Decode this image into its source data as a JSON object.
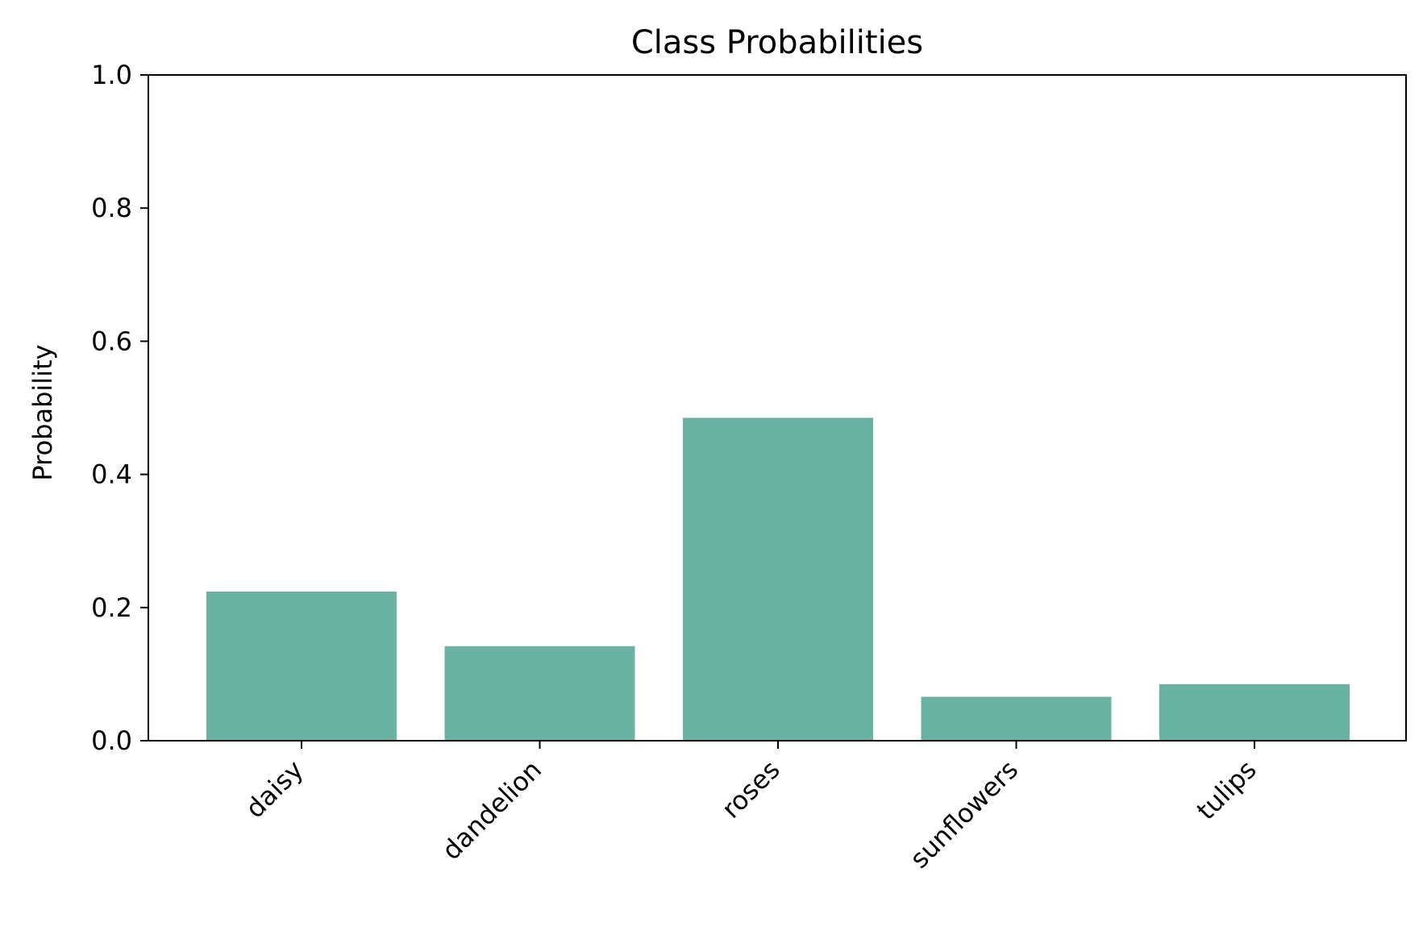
{
  "chart_data": {
    "type": "bar",
    "title": "Class Probabilities",
    "xlabel": "",
    "ylabel": "Probability",
    "categories": [
      "daisy",
      "dandelion",
      "roses",
      "sunflowers",
      "tulips"
    ],
    "values": [
      0.224,
      0.142,
      0.485,
      0.066,
      0.085
    ],
    "ylim": [
      0,
      1.0
    ],
    "yticks": [
      0.0,
      0.2,
      0.4,
      0.6,
      0.8,
      1.0
    ],
    "ytick_labels": [
      "0.0",
      "0.2",
      "0.4",
      "0.6",
      "0.8",
      "1.0"
    ],
    "grid": false,
    "legend": "none",
    "bar_color": "#69b3a2"
  }
}
